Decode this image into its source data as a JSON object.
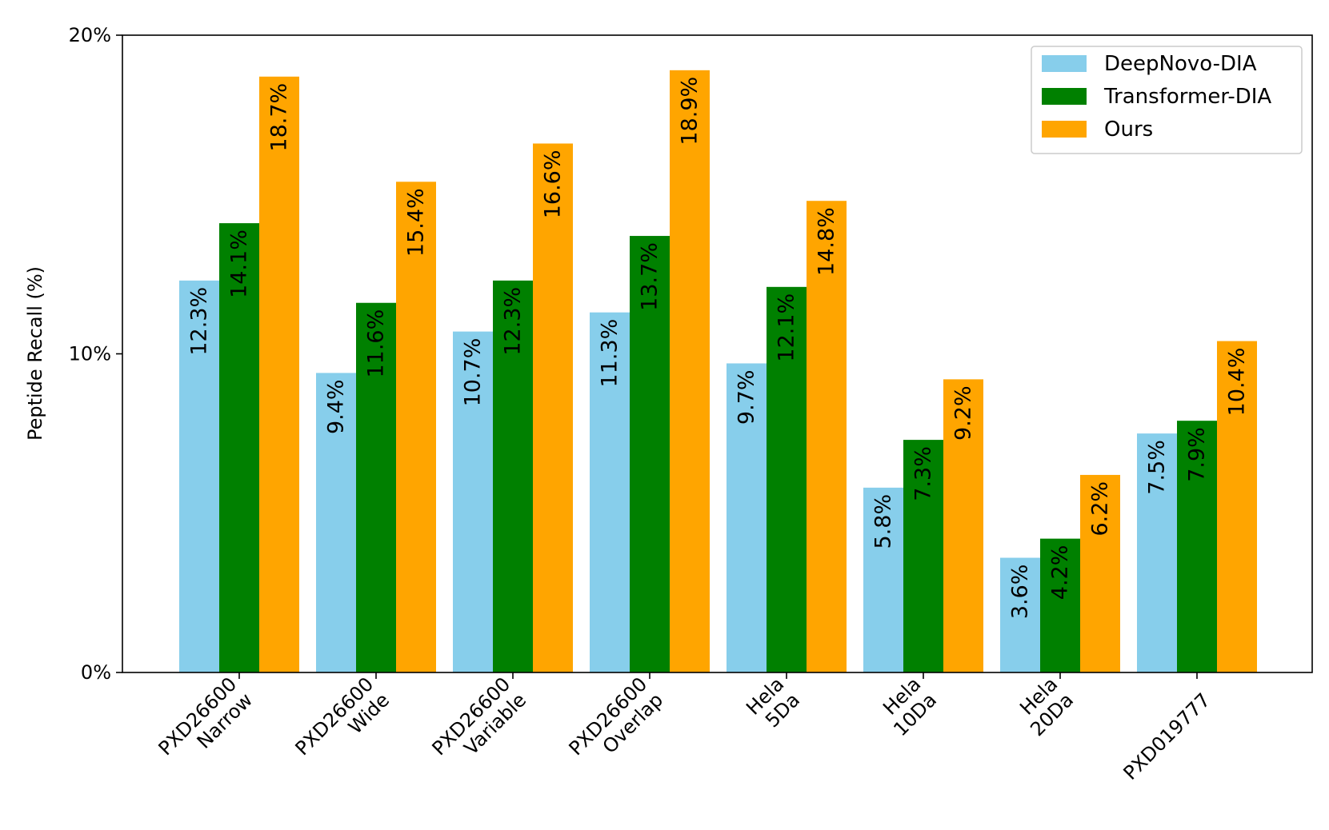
{
  "chart_data": {
    "type": "bar",
    "title": "",
    "xlabel": "",
    "ylabel": "Peptide Recall (%)",
    "ylim": [
      0,
      20
    ],
    "yticks": [
      0,
      10,
      20
    ],
    "ytick_labels": [
      "0%",
      "10%",
      "20%"
    ],
    "categories": [
      [
        "PXD26600",
        "Narrow"
      ],
      [
        "PXD26600",
        "Wide"
      ],
      [
        "PXD26600",
        "Variable"
      ],
      [
        "PXD26600",
        "Overlap"
      ],
      [
        "Hela",
        "5Da"
      ],
      [
        "Hela",
        "10Da"
      ],
      [
        "Hela",
        "20Da"
      ],
      [
        "PXD019777"
      ]
    ],
    "series": [
      {
        "name": "DeepNovo-DIA",
        "color": "#87ceeb",
        "values": [
          12.3,
          9.4,
          10.7,
          11.3,
          9.7,
          5.8,
          3.6,
          7.5
        ],
        "labels": [
          "12.3%",
          "9.4%",
          "10.7%",
          "11.3%",
          "9.7%",
          "5.8%",
          "3.6%",
          "7.5%"
        ]
      },
      {
        "name": "Transformer-DIA",
        "color": "#008000",
        "values": [
          14.1,
          11.6,
          12.3,
          13.7,
          12.1,
          7.3,
          4.2,
          7.9
        ],
        "labels": [
          "14.1%",
          "11.6%",
          "12.3%",
          "13.7%",
          "12.1%",
          "7.3%",
          "4.2%",
          "7.9%"
        ]
      },
      {
        "name": "Ours",
        "color": "#ffa500",
        "values": [
          18.7,
          15.4,
          16.6,
          18.9,
          14.8,
          9.2,
          6.2,
          10.4
        ],
        "labels": [
          "18.7%",
          "15.4%",
          "16.6%",
          "18.9%",
          "14.8%",
          "9.2%",
          "6.2%",
          "10.4%"
        ]
      }
    ],
    "legend": "top-right",
    "grid": false
  }
}
